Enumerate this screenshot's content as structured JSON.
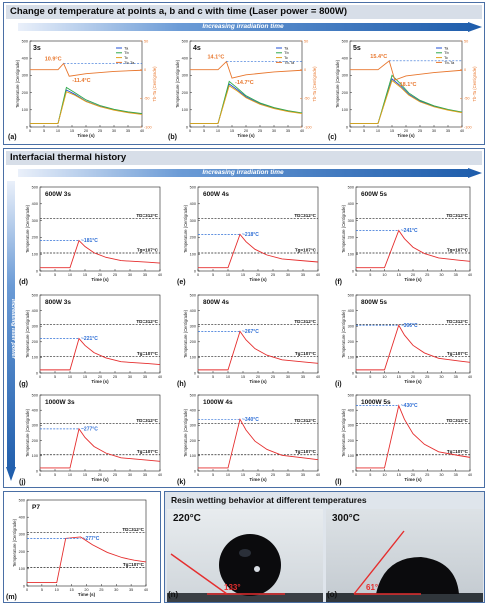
{
  "header_top": {
    "title": "Change of temperature at points a, b and c with time (Laser power = 800W)",
    "arrow": "Increasing irradiation time"
  },
  "header_mid": {
    "title": "Interfacial thermal history",
    "arrow": "Increasing irradiation time",
    "side_arrow": "Increasing laser power"
  },
  "header_bottom": {
    "title": "Resin wetting behavior at different temperatures"
  },
  "colors": {
    "header_bg": "#d7dee8",
    "arrow": "#2f6fb9",
    "red_line": "#e52e2e",
    "blue_dash": "#2f6fd6",
    "orange": "#e8772e"
  },
  "chart_data": [
    {
      "id": "a",
      "type": "line",
      "panel_label": "(a)",
      "time_label": "3s",
      "xlabel": "Time (s)",
      "ylabel": "Temperature (Centigrade)",
      "y2label": "Tb-Ta (Centigrade)",
      "xlim": [
        0,
        40
      ],
      "ylim": [
        0,
        500
      ],
      "y2lim": [
        -100,
        50
      ],
      "xticks": [
        0,
        5,
        10,
        15,
        20,
        25,
        30,
        35,
        40
      ],
      "yticks": [
        0,
        100,
        200,
        300,
        400,
        500
      ],
      "y2ticks": [
        -100,
        -50,
        0,
        50
      ],
      "legend": [
        "Ta",
        "Tb",
        "Tc",
        "Tb-Ta"
      ],
      "annotations": [
        "10.9°C",
        "-11.4°C"
      ],
      "series": [
        {
          "name": "Ta",
          "x": [
            0,
            10,
            13,
            16,
            20,
            25,
            30,
            35,
            40
          ],
          "y": [
            20,
            20,
            215,
            190,
            150,
            120,
            100,
            85,
            75
          ]
        },
        {
          "name": "Tb",
          "x": [
            0,
            10,
            13,
            16,
            20,
            25,
            30,
            35,
            40
          ],
          "y": [
            20,
            20,
            230,
            200,
            158,
            125,
            103,
            88,
            78
          ]
        },
        {
          "name": "Tc",
          "x": [
            0,
            10,
            13,
            16,
            20,
            25,
            30,
            35,
            40
          ],
          "y": [
            20,
            20,
            205,
            185,
            148,
            118,
            98,
            83,
            73
          ]
        },
        {
          "name": "Tb-Ta",
          "x": [
            0,
            10,
            12,
            14,
            20,
            30,
            40
          ],
          "y": [
            0,
            0,
            10.9,
            -11.4,
            -7,
            -3,
            -1
          ]
        }
      ]
    },
    {
      "id": "b",
      "type": "line",
      "panel_label": "(b)",
      "time_label": "4s",
      "xlabel": "Time (s)",
      "ylabel": "Temperature (Centigrade)",
      "y2label": "Tb-Ta (Centigrade)",
      "xlim": [
        0,
        40
      ],
      "ylim": [
        0,
        500
      ],
      "y2lim": [
        -100,
        50
      ],
      "xticks": [
        0,
        5,
        10,
        15,
        20,
        25,
        30,
        35,
        40
      ],
      "yticks": [
        0,
        100,
        200,
        300,
        400,
        500
      ],
      "y2ticks": [
        -100,
        -50,
        0,
        50
      ],
      "legend": [
        "Ta",
        "Tb",
        "Tc",
        "Tb-Ta"
      ],
      "annotations": [
        "14.1°C",
        "-14.7°C"
      ],
      "series": [
        {
          "name": "Ta",
          "x": [
            0,
            10,
            14,
            17,
            20,
            25,
            30,
            35,
            40
          ],
          "y": [
            20,
            20,
            250,
            215,
            175,
            135,
            110,
            92,
            80
          ]
        },
        {
          "name": "Tb",
          "x": [
            0,
            10,
            14,
            17,
            20,
            25,
            30,
            35,
            40
          ],
          "y": [
            20,
            20,
            265,
            225,
            182,
            140,
            113,
            95,
            82
          ]
        },
        {
          "name": "Tc",
          "x": [
            0,
            10,
            14,
            17,
            20,
            25,
            30,
            35,
            40
          ],
          "y": [
            20,
            20,
            240,
            208,
            170,
            132,
            107,
            90,
            78
          ]
        },
        {
          "name": "Tb-Ta",
          "x": [
            0,
            10,
            13,
            15,
            20,
            30,
            40
          ],
          "y": [
            0,
            0,
            14.1,
            -14.7,
            -9,
            -4,
            -1
          ]
        }
      ]
    },
    {
      "id": "c",
      "type": "line",
      "panel_label": "(c)",
      "time_label": "5s",
      "xlabel": "Time (s)",
      "ylabel": "Temperature (Centigrade)",
      "y2label": "Tb-Ta (Centigrade)",
      "xlim": [
        0,
        40
      ],
      "ylim": [
        0,
        500
      ],
      "y2lim": [
        -100,
        50
      ],
      "xticks": [
        0,
        5,
        10,
        15,
        20,
        25,
        30,
        35,
        40
      ],
      "yticks": [
        0,
        100,
        200,
        300,
        400,
        500
      ],
      "y2ticks": [
        -100,
        -50,
        0,
        50
      ],
      "legend": [
        "Ta",
        "Tb",
        "Tc",
        "Tb-Ta"
      ],
      "annotations": [
        "15.4°C",
        "-18.1°C"
      ],
      "series": [
        {
          "name": "Ta",
          "x": [
            0,
            10,
            15,
            18,
            21,
            25,
            30,
            35,
            40
          ],
          "y": [
            20,
            20,
            280,
            240,
            190,
            150,
            120,
            100,
            85
          ]
        },
        {
          "name": "Tb",
          "x": [
            0,
            10,
            15,
            18,
            21,
            25,
            30,
            35,
            40
          ],
          "y": [
            20,
            20,
            300,
            252,
            198,
            155,
            123,
            102,
            87
          ]
        },
        {
          "name": "Tc",
          "x": [
            0,
            10,
            15,
            18,
            21,
            25,
            30,
            35,
            40
          ],
          "y": [
            20,
            20,
            270,
            232,
            185,
            146,
            117,
            98,
            83
          ]
        },
        {
          "name": "Tb-Ta",
          "x": [
            0,
            10,
            14,
            16,
            20,
            30,
            40
          ],
          "y": [
            0,
            0,
            15.4,
            -18.1,
            -11,
            -5,
            -1
          ]
        }
      ]
    },
    {
      "id": "d",
      "type": "line",
      "panel_label": "(d)",
      "title": "600W 3s",
      "peak_label": "~181°C",
      "peak": 181,
      "t_end": 13,
      "xlabel": "Time (s)",
      "ylabel": "Temperature (Centigrade)",
      "xlim": [
        0,
        40
      ],
      "ylim": [
        0,
        500
      ],
      "xticks": [
        0,
        5,
        10,
        15,
        20,
        25,
        30,
        35,
        40
      ],
      "yticks": [
        0,
        100,
        200,
        300,
        400,
        500
      ],
      "ref_lines": [
        {
          "label": "TD=312°C",
          "value": 312
        },
        {
          "label": "Tg=107°C",
          "value": 107
        }
      ]
    },
    {
      "id": "e",
      "type": "line",
      "panel_label": "(e)",
      "title": "600W 4s",
      "peak_label": "~218°C",
      "peak": 218,
      "t_end": 14,
      "xlabel": "Time (s)",
      "ylabel": "Temperature (Centigrade)",
      "xlim": [
        0,
        40
      ],
      "ylim": [
        0,
        500
      ],
      "xticks": [
        0,
        5,
        10,
        15,
        20,
        25,
        30,
        35,
        40
      ],
      "yticks": [
        0,
        100,
        200,
        300,
        400,
        500
      ],
      "ref_lines": [
        {
          "label": "TD=312°C",
          "value": 312
        },
        {
          "label": "Tg=107°C",
          "value": 107
        }
      ]
    },
    {
      "id": "f",
      "type": "line",
      "panel_label": "(f)",
      "title": "600W 5s",
      "peak_label": "~241°C",
      "peak": 241,
      "t_end": 15,
      "xlabel": "Time (s)",
      "ylabel": "Temperature (Centigrade)",
      "xlim": [
        0,
        40
      ],
      "ylim": [
        0,
        500
      ],
      "xticks": [
        0,
        5,
        10,
        15,
        20,
        25,
        30,
        35,
        40
      ],
      "yticks": [
        0,
        100,
        200,
        300,
        400,
        500
      ],
      "ref_lines": [
        {
          "label": "TD=312°C",
          "value": 312
        },
        {
          "label": "Tg=107°C",
          "value": 107
        }
      ]
    },
    {
      "id": "g",
      "type": "line",
      "panel_label": "(g)",
      "title": "800W 3s",
      "peak_label": "~221°C",
      "peak": 221,
      "t_end": 13,
      "xlabel": "Time (s)",
      "ylabel": "Temperature (Centigrade)",
      "xlim": [
        0,
        40
      ],
      "ylim": [
        0,
        500
      ],
      "xticks": [
        0,
        5,
        10,
        15,
        20,
        25,
        30,
        35,
        40
      ],
      "yticks": [
        0,
        100,
        200,
        300,
        400,
        500
      ],
      "ref_lines": [
        {
          "label": "TD=312°C",
          "value": 312
        },
        {
          "label": "Tg=107°C",
          "value": 107
        }
      ]
    },
    {
      "id": "h",
      "type": "line",
      "panel_label": "(h)",
      "title": "800W 4s",
      "peak_label": "~267°C",
      "peak": 267,
      "t_end": 14,
      "xlabel": "Time (s)",
      "ylabel": "Temperature (Centigrade)",
      "xlim": [
        0,
        40
      ],
      "ylim": [
        0,
        500
      ],
      "xticks": [
        0,
        5,
        10,
        15,
        20,
        25,
        30,
        35,
        40
      ],
      "yticks": [
        0,
        100,
        200,
        300,
        400,
        500
      ],
      "ref_lines": [
        {
          "label": "TD=312°C",
          "value": 312
        },
        {
          "label": "Tg=107°C",
          "value": 107
        }
      ]
    },
    {
      "id": "i",
      "type": "line",
      "panel_label": "(i)",
      "title": "800W 5s",
      "peak_label": "~306°C",
      "peak": 306,
      "t_end": 15,
      "xlabel": "Time (s)",
      "ylabel": "Temperature (Centigrade)",
      "xlim": [
        0,
        40
      ],
      "ylim": [
        0,
        500
      ],
      "xticks": [
        0,
        5,
        10,
        15,
        20,
        25,
        30,
        35,
        40
      ],
      "yticks": [
        0,
        100,
        200,
        300,
        400,
        500
      ],
      "ref_lines": [
        {
          "label": "TD=312°C",
          "value": 312
        },
        {
          "label": "Tg=107°C",
          "value": 107
        }
      ]
    },
    {
      "id": "j",
      "type": "line",
      "panel_label": "(j)",
      "title": "1000W 3s",
      "peak_label": "~277°C",
      "peak": 277,
      "t_end": 13,
      "xlabel": "Time (s)",
      "ylabel": "Temperature (Centigrade)",
      "xlim": [
        0,
        40
      ],
      "ylim": [
        0,
        500
      ],
      "xticks": [
        0,
        5,
        10,
        15,
        20,
        25,
        30,
        35,
        40
      ],
      "yticks": [
        0,
        100,
        200,
        300,
        400,
        500
      ],
      "ref_lines": [
        {
          "label": "TD=312°C",
          "value": 312
        },
        {
          "label": "Tg=107°C",
          "value": 107
        }
      ]
    },
    {
      "id": "k",
      "type": "line",
      "panel_label": "(k)",
      "title": "1000W 4s",
      "peak_label": "~340°C",
      "peak": 340,
      "t_end": 14,
      "xlabel": "Time (s)",
      "ylabel": "Temperature (Centigrade)",
      "xlim": [
        0,
        40
      ],
      "ylim": [
        0,
        500
      ],
      "xticks": [
        0,
        5,
        10,
        15,
        20,
        25,
        30,
        35,
        40
      ],
      "yticks": [
        0,
        100,
        200,
        300,
        400,
        500
      ],
      "ref_lines": [
        {
          "label": "TD=312°C",
          "value": 312
        },
        {
          "label": "Tg=107°C",
          "value": 107
        }
      ]
    },
    {
      "id": "l",
      "type": "line",
      "panel_label": "(l)",
      "title": "1000W 5s",
      "peak_label": "~430°C",
      "peak": 430,
      "t_end": 15,
      "xlabel": "Time (s)",
      "ylabel": "Temperature (Centigrade)",
      "xlim": [
        0,
        40
      ],
      "ylim": [
        0,
        500
      ],
      "xticks": [
        0,
        5,
        10,
        15,
        20,
        25,
        30,
        35,
        40
      ],
      "yticks": [
        0,
        100,
        200,
        300,
        400,
        500
      ],
      "ref_lines": [
        {
          "label": "TD=312°C",
          "value": 312
        },
        {
          "label": "Tg=107°C",
          "value": 107
        }
      ]
    },
    {
      "id": "m",
      "type": "line",
      "panel_label": "(m)",
      "title": "P7",
      "peak_label": "~277°C",
      "peak": 277,
      "t_end": 18,
      "plateau_start": 13,
      "xlabel": "Time (s)",
      "ylabel": "Temperature (Centigrade)",
      "xlim": [
        0,
        40
      ],
      "ylim": [
        0,
        500
      ],
      "xticks": [
        0,
        5,
        10,
        15,
        20,
        25,
        30,
        35,
        40
      ],
      "yticks": [
        0,
        100,
        200,
        300,
        400,
        500
      ],
      "ref_lines": [
        {
          "label": "TD=312°C",
          "value": 312
        },
        {
          "label": "Tg=107°C",
          "value": 107
        }
      ]
    }
  ],
  "wetting": [
    {
      "panel_label": "(n)",
      "temp": "220°C",
      "angle": "133°"
    },
    {
      "panel_label": "(o)",
      "temp": "300°C",
      "angle": "61°"
    }
  ]
}
